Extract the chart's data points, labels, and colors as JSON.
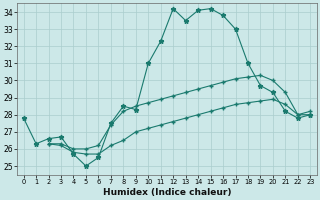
{
  "xlabel": "Humidex (Indice chaleur)",
  "xlim": [
    -0.5,
    23.5
  ],
  "ylim": [
    24.5,
    34.5
  ],
  "xticks": [
    0,
    1,
    2,
    3,
    4,
    5,
    6,
    7,
    8,
    9,
    10,
    11,
    12,
    13,
    14,
    15,
    16,
    17,
    18,
    19,
    20,
    21,
    22,
    23
  ],
  "yticks": [
    25,
    26,
    27,
    28,
    29,
    30,
    31,
    32,
    33,
    34
  ],
  "bg_color": "#cce8e8",
  "line_color": "#1a7a6e",
  "grid_color": "#aacece",
  "line1_x": [
    0,
    1,
    2,
    3,
    4,
    5,
    6,
    7,
    8,
    9,
    10,
    11,
    12,
    13,
    14,
    15,
    16,
    17,
    18,
    19,
    20,
    21,
    22,
    23
  ],
  "line1_y": [
    27.8,
    26.3,
    26.6,
    26.7,
    25.7,
    25.0,
    25.5,
    27.5,
    28.5,
    28.3,
    31.0,
    32.3,
    34.2,
    33.5,
    34.1,
    34.2,
    33.8,
    33.0,
    31.0,
    29.7,
    29.3,
    28.2,
    27.8,
    28.0
  ],
  "line2_x": [
    2,
    3,
    4,
    5,
    6,
    7,
    8,
    9,
    10,
    11,
    12,
    13,
    14,
    15,
    16,
    17,
    18,
    19,
    20,
    21,
    22,
    23
  ],
  "line2_y": [
    26.3,
    26.3,
    26.0,
    26.0,
    26.2,
    27.4,
    28.2,
    28.5,
    28.7,
    28.9,
    29.1,
    29.3,
    29.5,
    29.7,
    29.9,
    30.1,
    30.2,
    30.3,
    30.0,
    29.3,
    28.0,
    28.2
  ],
  "line3_x": [
    2,
    3,
    4,
    5,
    6,
    7,
    8,
    9,
    10,
    11,
    12,
    13,
    14,
    15,
    16,
    17,
    18,
    19,
    20,
    21,
    22,
    23
  ],
  "line3_y": [
    26.3,
    26.2,
    25.8,
    25.7,
    25.7,
    26.2,
    26.5,
    27.0,
    27.2,
    27.4,
    27.6,
    27.8,
    28.0,
    28.2,
    28.4,
    28.6,
    28.7,
    28.8,
    28.9,
    28.6,
    28.0,
    28.0
  ]
}
